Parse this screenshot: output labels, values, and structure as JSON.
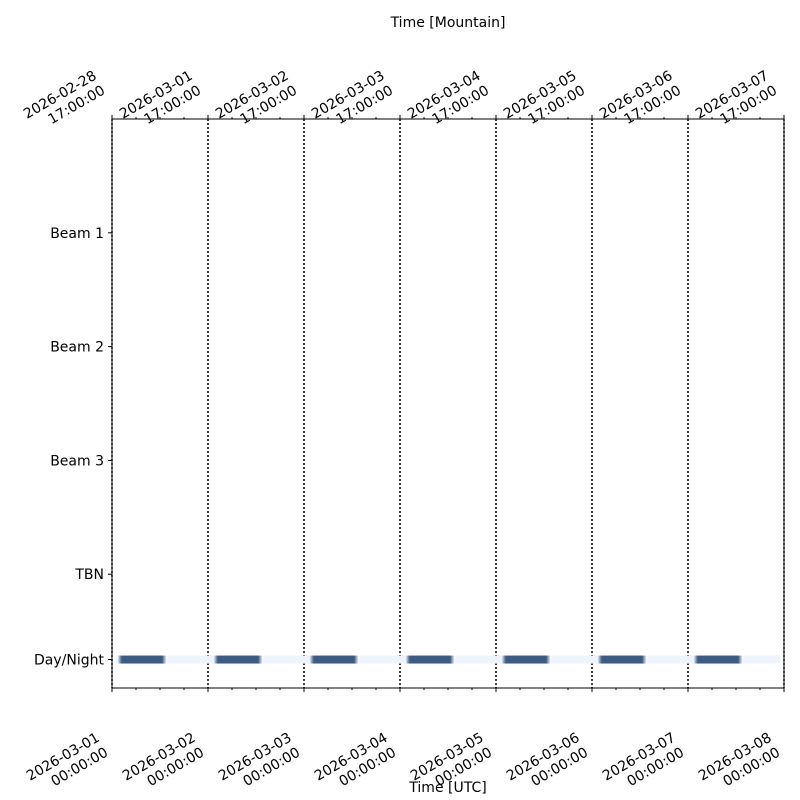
{
  "chart_data": {
    "type": "timeline",
    "xlabel": "Time [UTC]",
    "x2label": "Time [Mountain]",
    "xlim": [
      "2026-03-01 00:00:00",
      "2026-03-08 00:00:00"
    ],
    "xticks": [
      {
        "value": "2026-03-01 00:00:00",
        "label": "2026-03-01\n00:00:00"
      },
      {
        "value": "2026-03-02 00:00:00",
        "label": "2026-03-02\n00:00:00"
      },
      {
        "value": "2026-03-03 00:00:00",
        "label": "2026-03-03\n00:00:00"
      },
      {
        "value": "2026-03-04 00:00:00",
        "label": "2026-03-04\n00:00:00"
      },
      {
        "value": "2026-03-05 00:00:00",
        "label": "2026-03-05\n00:00:00"
      },
      {
        "value": "2026-03-06 00:00:00",
        "label": "2026-03-06\n00:00:00"
      },
      {
        "value": "2026-03-07 00:00:00",
        "label": "2026-03-07\n00:00:00"
      },
      {
        "value": "2026-03-08 00:00:00",
        "label": "2026-03-08\n00:00:00"
      }
    ],
    "x2ticks": [
      {
        "value": "2026-03-01 00:00:00",
        "label": "2026-02-28\n17:00:00"
      },
      {
        "value": "2026-03-02 00:00:00",
        "label": "2026-03-01\n17:00:00"
      },
      {
        "value": "2026-03-03 00:00:00",
        "label": "2026-03-02\n17:00:00"
      },
      {
        "value": "2026-03-04 00:00:00",
        "label": "2026-03-03\n17:00:00"
      },
      {
        "value": "2026-03-05 00:00:00",
        "label": "2026-03-04\n17:00:00"
      },
      {
        "value": "2026-03-06 00:00:00",
        "label": "2026-03-05\n17:00:00"
      },
      {
        "value": "2026-03-07 00:00:00",
        "label": "2026-03-06\n17:00:00"
      },
      {
        "value": "2026-03-08 00:00:00",
        "label": "2026-03-07\n17:00:00"
      }
    ],
    "ylim": [
      0,
      5
    ],
    "yticks": [
      {
        "value": 4,
        "label": "Beam 1"
      },
      {
        "value": 3,
        "label": "Beam 2"
      },
      {
        "value": 2,
        "label": "Beam 3"
      },
      {
        "value": 1,
        "label": "TBN"
      },
      {
        "value": 0.25,
        "label": "Day/Night"
      }
    ],
    "grid": "x-dotted",
    "night_color": "#3d5a80",
    "day_color": "#eef5fc",
    "night": [
      [
        "2026-03-01 01:30",
        "2026-03-01 13:30"
      ],
      [
        "2026-03-02 01:30",
        "2026-03-02 13:30"
      ],
      [
        "2026-03-03 01:30",
        "2026-03-03 13:30"
      ],
      [
        "2026-03-04 01:30",
        "2026-03-04 13:30"
      ],
      [
        "2026-03-05 01:30",
        "2026-03-05 13:30"
      ],
      [
        "2026-03-06 01:30",
        "2026-03-06 13:30"
      ],
      [
        "2026-03-07 01:30",
        "2026-03-07 13:30"
      ]
    ]
  }
}
